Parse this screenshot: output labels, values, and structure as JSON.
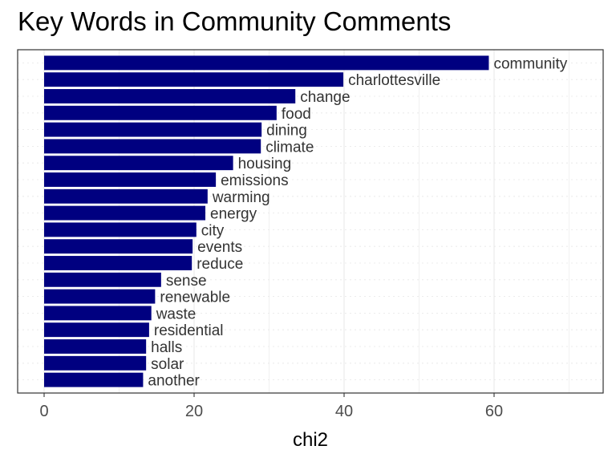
{
  "chart_data": {
    "type": "bar",
    "orientation": "horizontal",
    "title": "Key Words in Community Comments",
    "xlabel": "chi2",
    "ylabel": "",
    "xlim": [
      0,
      74
    ],
    "x_ticks": [
      0,
      20,
      40,
      60
    ],
    "grid": true,
    "legend": "none",
    "bar_color": "#000080",
    "categories": [
      "community",
      "charlottesville",
      "change",
      "food",
      "dining",
      "climate",
      "housing",
      "emissions",
      "warming",
      "energy",
      "city",
      "events",
      "reduce",
      "sense",
      "renewable",
      "waste",
      "residential",
      "halls",
      "solar",
      "another"
    ],
    "values": [
      59.3,
      39.9,
      33.5,
      31.0,
      29.0,
      28.9,
      25.2,
      22.9,
      21.8,
      21.5,
      20.3,
      19.8,
      19.7,
      15.6,
      14.8,
      14.3,
      14.0,
      13.6,
      13.6,
      13.2
    ]
  }
}
